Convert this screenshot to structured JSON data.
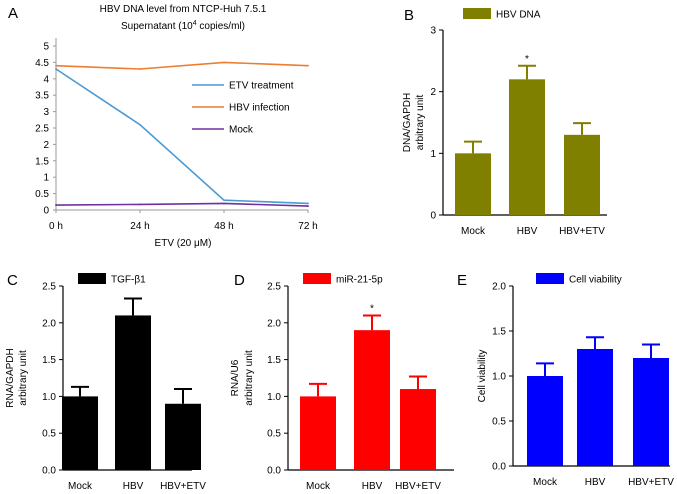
{
  "chart_data": [
    {
      "panel": "A",
      "type": "line",
      "title": "HBV DNA level from NTCP-Huh 7.5.1",
      "subtitle_prefix": "Supernatant (10",
      "subtitle_exponent": "4",
      "subtitle_suffix": " copies/ml)",
      "xlabel": "ETV (20 μM)",
      "ylabel": "",
      "categories": [
        "0 h",
        "24 h",
        "48 h",
        "72 h"
      ],
      "ylim": [
        0,
        5
      ],
      "yticks": [
        0,
        0.5,
        1,
        1.5,
        2,
        2.5,
        3,
        3.5,
        4,
        4.5,
        5
      ],
      "ytick_labels": [
        "0",
        "0.5",
        "1",
        "1.5",
        "2",
        "2.5",
        "3",
        "3.5",
        "4",
        "4.5",
        "5"
      ],
      "legend_position": "right-middle",
      "series": [
        {
          "name": "ETV treatment",
          "color": "#4a9ad4",
          "values": [
            4.3,
            2.6,
            0.3,
            0.2
          ]
        },
        {
          "name": "HBV infection",
          "color": "#ec7d31",
          "values": [
            4.4,
            4.3,
            4.5,
            4.4
          ]
        },
        {
          "name": "Mock",
          "color": "#7030a0",
          "values": [
            0.15,
            0.17,
            0.2,
            0.12
          ]
        }
      ]
    },
    {
      "panel": "B",
      "type": "bar",
      "legend": "HBV DNA",
      "color": "#808000",
      "ylabel_lines": [
        "DNA/GAPDH",
        "arbitrary unit"
      ],
      "categories": [
        "Mock",
        "HBV",
        "HBV+ETV"
      ],
      "values": [
        1.0,
        2.2,
        1.3
      ],
      "errors": [
        0.19,
        0.22,
        0.19
      ],
      "significance": [
        "",
        "*",
        ""
      ],
      "ylim": [
        0,
        3
      ],
      "yticks": [
        0,
        1,
        2,
        3
      ],
      "ytick_labels": [
        "0",
        "1",
        "2",
        "3"
      ]
    },
    {
      "panel": "C",
      "type": "bar",
      "legend": "TGF-β1",
      "color": "#000000",
      "ylabel_lines": [
        "RNA/GAPDH",
        "arbitrary unit"
      ],
      "categories": [
        "Mock",
        "HBV",
        "HBV+ETV"
      ],
      "values": [
        1.0,
        2.1,
        0.9
      ],
      "errors": [
        0.13,
        0.23,
        0.2
      ],
      "significance": [
        "",
        "",
        ""
      ],
      "ylim": [
        0,
        2.5
      ],
      "yticks": [
        0,
        0.5,
        1,
        1.5,
        2,
        2.5
      ],
      "ytick_labels": [
        "0.0",
        "0.5",
        "1.0",
        "1.5",
        "2.0",
        "2.5"
      ]
    },
    {
      "panel": "D",
      "type": "bar",
      "legend": "miR-21-5p",
      "color": "#ff0000",
      "ylabel_lines": [
        "RNA/U6",
        "arbitrary unit"
      ],
      "categories": [
        "Mock",
        "HBV",
        "HBV+ETV"
      ],
      "values": [
        1.0,
        1.9,
        1.1
      ],
      "errors": [
        0.17,
        0.2,
        0.17
      ],
      "significance": [
        "",
        "*",
        ""
      ],
      "ylim": [
        0,
        2.5
      ],
      "yticks": [
        0,
        0.5,
        1,
        1.5,
        2,
        2.5
      ],
      "ytick_labels": [
        "0.0",
        "0.5",
        "1.0",
        "1.5",
        "2.0",
        "2.5"
      ]
    },
    {
      "panel": "E",
      "type": "bar",
      "legend": "Cell viability",
      "color": "#0000ff",
      "ylabel_lines": [
        "Cell viability"
      ],
      "categories": [
        "Mock",
        "HBV",
        "HBV+ETV"
      ],
      "values": [
        1.0,
        1.3,
        1.2
      ],
      "errors": [
        0.14,
        0.13,
        0.15
      ],
      "significance": [
        "",
        "",
        ""
      ],
      "ylim": [
        0,
        2
      ],
      "yticks": [
        0,
        0.5,
        1,
        1.5,
        2
      ],
      "ytick_labels": [
        "0.0",
        "0.5",
        "1.0",
        "1.5",
        "2.0"
      ]
    }
  ]
}
